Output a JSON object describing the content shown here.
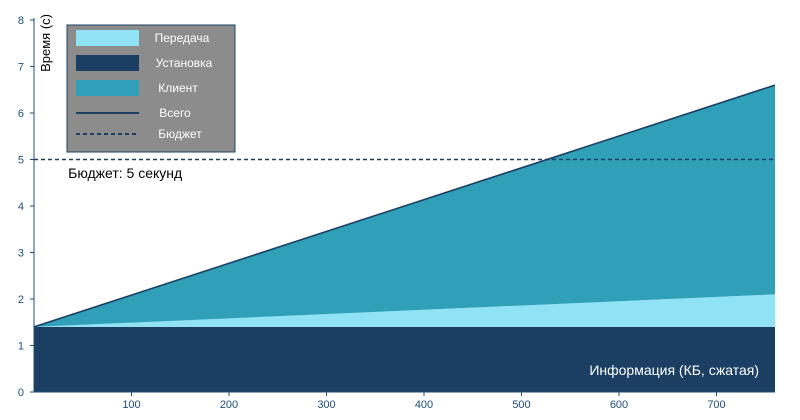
{
  "chart_data": {
    "type": "area",
    "title": "",
    "xlabel": "Информация (КБ, сжатая)",
    "ylabel": "Время (с)",
    "xlim": [
      0,
      760
    ],
    "ylim": [
      0,
      8
    ],
    "x_ticks": [
      100,
      200,
      300,
      400,
      500,
      600,
      700
    ],
    "y_ticks": [
      0,
      1,
      2,
      3,
      4,
      5,
      6,
      7,
      8
    ],
    "x": [
      0,
      760
    ],
    "series": [
      {
        "name": "Установка",
        "kind": "stacked-area",
        "values": [
          1.4,
          1.4
        ],
        "color": "#1b3f63"
      },
      {
        "name": "Передача",
        "kind": "stacked-area",
        "values": [
          0.0,
          0.7
        ],
        "color": "#8fe3f5"
      },
      {
        "name": "Клиент",
        "kind": "stacked-area",
        "values": [
          0.0,
          4.5
        ],
        "color": "#30a0b8"
      },
      {
        "name": "Всего",
        "kind": "line",
        "values": [
          1.4,
          6.6
        ],
        "color": "#1b3f63"
      },
      {
        "name": "Бюджет",
        "kind": "dashed-line",
        "values": [
          5,
          5
        ],
        "color": "#1b3f63"
      }
    ],
    "legend": {
      "placement": "top-left",
      "background": "#8c8c8c",
      "items": [
        "Передача",
        "Установка",
        "Клиент",
        "Всего",
        "Бюджет"
      ]
    },
    "annotations": [
      {
        "text": "Бюджет: 5 секунд",
        "x": 35,
        "y": 4.6
      }
    ],
    "grid": false
  },
  "colors": {
    "axis": "#1f4e79"
  }
}
